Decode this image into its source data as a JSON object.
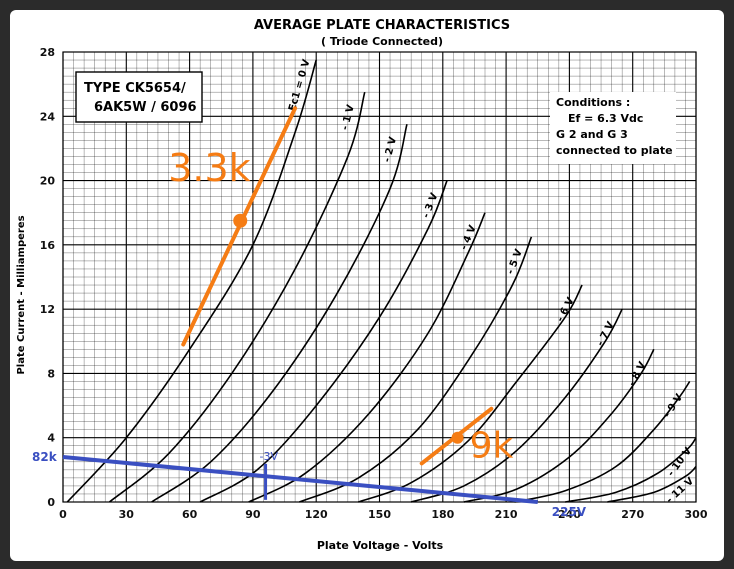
{
  "chart_data": {
    "type": "line",
    "title": "AVERAGE PLATE CHARACTERISTICS",
    "subtitle": "( Triode  Connected)",
    "xlabel": "Plate  Voltage - Volts",
    "ylabel": "Plate Current - Milliamperes",
    "xlim": [
      0,
      300
    ],
    "ylim": [
      0,
      28
    ],
    "grid": true,
    "x_ticks": [
      "0",
      "30",
      "60",
      "90",
      "120",
      "150",
      "180",
      "210",
      "240",
      "270",
      "300"
    ],
    "y_ticks": [
      "0",
      "4",
      "8",
      "12",
      "16",
      "20",
      "24",
      "28"
    ],
    "type_box": {
      "line1": "TYPE  CK5654/",
      "line2": "6AK5W / 6096"
    },
    "conditions": {
      "title": "Conditions :",
      "line1": "Ef = 6.3 Vdc",
      "line2": "G 2  and  G 3",
      "line3": "connected to plate"
    },
    "series": [
      {
        "name": "Ec1 = 0 V",
        "x": [
          2,
          30,
          60,
          90,
          110,
          120
        ],
        "y": [
          0,
          4,
          9.5,
          16,
          23,
          27.5
        ]
      },
      {
        "name": "- 1 V",
        "x": [
          22,
          50,
          80,
          110,
          135,
          143
        ],
        "y": [
          0,
          3,
          8,
          14.5,
          21.5,
          25.5
        ]
      },
      {
        "name": "- 2 V",
        "x": [
          42,
          70,
          100,
          130,
          155,
          163
        ],
        "y": [
          0,
          2.5,
          7,
          13,
          19.5,
          23.5
        ]
      },
      {
        "name": "- 3 V",
        "x": [
          65,
          92,
          120,
          150,
          173,
          182
        ],
        "y": [
          0,
          2,
          6,
          11.5,
          17,
          20
        ]
      },
      {
        "name": "- 4 V",
        "x": [
          88,
          115,
          145,
          173,
          192,
          200
        ],
        "y": [
          0,
          1.8,
          5.5,
          10.5,
          15.5,
          18
        ]
      },
      {
        "name": "- 5 V",
        "x": [
          112,
          140,
          168,
          193,
          213,
          222
        ],
        "y": [
          0,
          1.5,
          4.5,
          9,
          13.5,
          16.5
        ]
      },
      {
        "name": "- 6 V",
        "x": [
          140,
          165,
          192,
          215,
          238,
          246
        ],
        "y": [
          0,
          1.2,
          3.8,
          7.5,
          11.5,
          13.5
        ]
      },
      {
        "name": "- 7 V",
        "x": [
          165,
          190,
          215,
          238,
          257,
          265
        ],
        "y": [
          0,
          1,
          3.2,
          6.5,
          10,
          12
        ]
      },
      {
        "name": "- 8 V",
        "x": [
          190,
          215,
          240,
          260,
          274,
          280
        ],
        "y": [
          0,
          0.8,
          2.8,
          5.5,
          8,
          9.5
        ]
      },
      {
        "name": "- 9 V",
        "x": [
          214,
          238,
          262,
          280,
          292,
          297
        ],
        "y": [
          0,
          0.7,
          2.2,
          4.5,
          6.5,
          7.5
        ]
      },
      {
        "name": "- 10 V",
        "x": [
          238,
          262,
          282,
          296,
          300
        ],
        "y": [
          0,
          0.6,
          1.8,
          3.3,
          4
        ]
      },
      {
        "name": "- 11 V",
        "x": [
          258,
          280,
          295,
          300
        ],
        "y": [
          0,
          0.6,
          1.6,
          2.2
        ]
      }
    ],
    "annotations": {
      "load_3k3": {
        "label": "3.3k",
        "color": "#f57c14",
        "x": [
          57,
          110
        ],
        "y": [
          9.8,
          24.5
        ],
        "point": [
          84,
          17.5
        ]
      },
      "load_9k": {
        "label": "9k",
        "color": "#f57c14",
        "x": [
          170,
          203
        ],
        "y": [
          2.4,
          5.8
        ],
        "point": [
          187,
          4
        ]
      },
      "load_82k": {
        "label": "82k",
        "end_label": "225V",
        "color": "#3a4fc1",
        "x": [
          0,
          225
        ],
        "y": [
          2.8,
          0
        ],
        "marker_label": "-3V",
        "marker_x": 96,
        "marker_y": 2.0
      }
    }
  }
}
